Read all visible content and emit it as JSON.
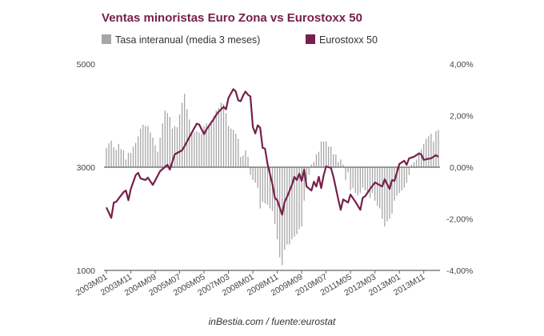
{
  "chart_data": {
    "type": "bar+line",
    "title": "Ventas minoristas Euro Zona vs Eurostoxx 50",
    "footer": "inBestia.com / fuente:eurostat",
    "start_month": "2003M01",
    "x_tick_labels": [
      "2003M01",
      "2003M11",
      "2004M09",
      "2005M07",
      "2006M05",
      "2007M03",
      "2008M01",
      "2008M11",
      "2009M09",
      "2010M07",
      "2011M05",
      "2012M03",
      "2013M01",
      "2013M11"
    ],
    "x_tick_every_months": 10,
    "left_axis": {
      "ticks": [
        "5000",
        "3000",
        "1000"
      ],
      "values": [
        5000,
        3000,
        1000
      ],
      "range": [
        1000,
        5000
      ]
    },
    "right_axis": {
      "ticks": [
        "4,00%",
        "2,00%",
        "0,00%",
        "-2,00%",
        "-4,00%"
      ],
      "values": [
        4,
        2,
        0,
        -2,
        -4
      ],
      "range": [
        -4,
        4
      ]
    },
    "series": [
      {
        "name": "Tasa interanual (media 3 meses)",
        "type": "bar",
        "axis": "right",
        "color": "#a6a6a6",
        "values": [
          0.75,
          0.93,
          1.03,
          0.77,
          0.67,
          0.9,
          0.7,
          0.66,
          0.3,
          0.55,
          0.55,
          0.8,
          0.95,
          1.2,
          1.5,
          1.65,
          1.6,
          1.6,
          1.35,
          1.15,
          0.85,
          0.6,
          1.15,
          1.7,
          2.2,
          2.1,
          1.95,
          1.5,
          1.6,
          1.55,
          2.05,
          2.5,
          2.85,
          2.25,
          1.85,
          1.3,
          1.35,
          1.4,
          1.35,
          1.3,
          1.6,
          1.7,
          1.65,
          1.8,
          2.0,
          2.2,
          2.3,
          2.5,
          2.45,
          2.1,
          1.6,
          1.5,
          1.45,
          1.3,
          1.1,
          0.4,
          0.45,
          0.65,
          0.4,
          -0.3,
          -0.5,
          -0.6,
          -0.8,
          -1.6,
          -1.35,
          -1.4,
          -1.45,
          -1.6,
          -1.7,
          -2.2,
          -2.8,
          -3.5,
          -3.8,
          -3.2,
          -3.0,
          -3.0,
          -2.8,
          -2.7,
          -2.6,
          -2.4,
          -2.3,
          -1.3,
          -0.5,
          -0.3,
          0.1,
          0.2,
          0.5,
          0.6,
          1.0,
          1.0,
          1.0,
          0.8,
          0.8,
          0.5,
          0.5,
          0.2,
          0.3,
          0.1,
          -0.5,
          -0.2,
          -0.9,
          -0.8,
          -1.0,
          -1.1,
          -1.0,
          -0.8,
          -0.9,
          -1.0,
          -1.2,
          -1.0,
          -1.3,
          -1.5,
          -1.6,
          -2.0,
          -2.3,
          -2.1,
          -2.0,
          -1.8,
          -1.3,
          -1.1,
          -1.0,
          -0.9,
          -0.8,
          -0.6,
          -0.3,
          0.1,
          0.2,
          0.3,
          0.6,
          0.7,
          0.9,
          1.1,
          1.2,
          1.3,
          1.0,
          1.4,
          1.45
        ]
      },
      {
        "name": "Eurostoxx 50",
        "type": "line",
        "axis": "left",
        "color": "#76204a",
        "month_index": [
          0,
          2,
          3,
          4,
          7,
          8,
          9,
          10,
          12,
          13,
          14,
          16,
          17,
          19,
          22,
          25,
          26,
          28,
          31,
          32,
          35,
          37,
          38,
          40,
          41,
          44,
          45,
          46,
          48,
          49,
          50,
          52,
          53,
          54,
          55,
          56,
          57,
          58,
          59,
          60,
          61,
          62,
          63,
          64,
          65,
          66,
          68,
          69,
          70,
          72,
          73,
          74,
          76,
          77,
          78,
          79,
          80,
          81,
          82,
          84,
          85,
          86,
          87,
          88,
          89,
          90,
          92,
          93,
          95,
          96,
          97,
          99,
          100,
          102,
          104,
          105,
          106,
          108,
          110,
          113,
          114,
          116,
          117,
          118,
          120,
          122,
          123,
          124,
          126,
          128,
          129,
          130,
          131,
          133,
          135,
          136
        ],
        "values": [
          2219,
          2016,
          2313,
          2328,
          2516,
          2547,
          2359,
          2578,
          2844,
          2891,
          2781,
          2750,
          2797,
          2656,
          2922,
          3047,
          2953,
          3250,
          3328,
          3406,
          3672,
          3844,
          3828,
          3641,
          3734,
          3938,
          4016,
          4078,
          4172,
          4125,
          4344,
          4516,
          4469,
          4297,
          4281,
          4391,
          4469,
          4406,
          4375,
          3781,
          3656,
          3813,
          3766,
          3375,
          3359,
          3063,
          2672,
          2406,
          2359,
          2078,
          2328,
          2422,
          2656,
          2813,
          2750,
          2875,
          2734,
          2953,
          2625,
          2547,
          2719,
          2625,
          2813,
          2594,
          2844,
          3016,
          2984,
          2813,
          2375,
          2172,
          2375,
          2313,
          2469,
          2328,
          2172,
          2406,
          2438,
          2578,
          2703,
          2625,
          2766,
          2578,
          2750,
          2734,
          3063,
          3125,
          3047,
          3172,
          3203,
          3266,
          3250,
          3141,
          3156,
          3172,
          3234,
          3200
        ]
      }
    ],
    "legend_position": "top"
  }
}
